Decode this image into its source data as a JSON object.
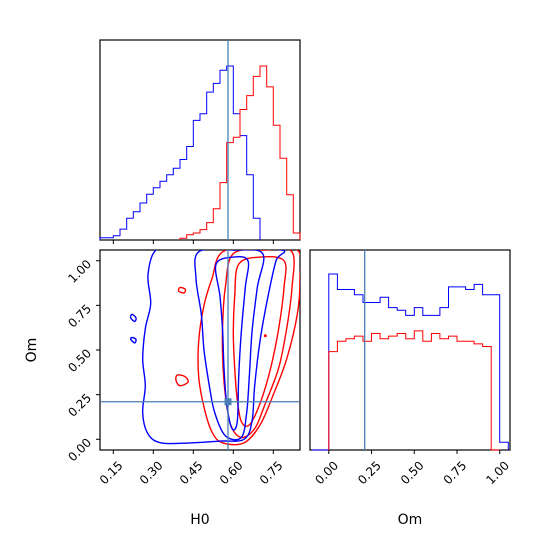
{
  "chart_data": {
    "type": "corner",
    "parameters": [
      "H0",
      "Om"
    ],
    "truth": {
      "H0": 0.58,
      "Om": 0.21
    },
    "truth_color": "#4a7fb5",
    "xlabel_H0": "H0",
    "xlabel_Om": "Om",
    "ylabel_Om": "Om",
    "H0_ticks": [
      "0.15",
      "0.30",
      "0.45",
      "0.60",
      "0.75"
    ],
    "Om_ticks": [
      "0.00",
      "0.25",
      "0.50",
      "0.75",
      "1.00"
    ],
    "H0_range": [
      0.1,
      0.85
    ],
    "Om_range": [
      -0.06,
      1.06
    ],
    "series": [
      {
        "color": "#0000ff",
        "H0_hist": {
          "edges": [
            0.1,
            0.125,
            0.15,
            0.175,
            0.2,
            0.225,
            0.25,
            0.275,
            0.3,
            0.325,
            0.35,
            0.375,
            0.4,
            0.425,
            0.45,
            0.475,
            0.5,
            0.525,
            0.55,
            0.575,
            0.6,
            0.625,
            0.65,
            0.675,
            0.7
          ],
          "counts": [
            1,
            1,
            2,
            5,
            10,
            13,
            17,
            21,
            24,
            27,
            30,
            33,
            37,
            43,
            55,
            58,
            68,
            72,
            78,
            80,
            58,
            48,
            30,
            10
          ]
        },
        "Om_hist": {
          "edges": [
            -0.1,
            -0.05,
            0.0,
            0.05,
            0.1,
            0.15,
            0.2,
            0.25,
            0.3,
            0.35,
            0.4,
            0.45,
            0.5,
            0.55,
            0.6,
            0.65,
            0.7,
            0.75,
            0.8,
            0.85,
            0.9,
            0.95,
            1.0,
            1.05
          ],
          "counts": [
            0,
            0,
            68,
            62,
            62,
            60,
            57,
            57,
            59,
            55,
            54,
            52,
            55,
            52,
            52,
            55,
            63,
            63,
            62,
            64,
            60,
            60,
            3
          ]
        }
      },
      {
        "color": "#ff0000",
        "H0_hist": {
          "edges": [
            0.4,
            0.425,
            0.45,
            0.475,
            0.5,
            0.525,
            0.55,
            0.575,
            0.6,
            0.625,
            0.65,
            0.675,
            0.7,
            0.725,
            0.75,
            0.775,
            0.8,
            0.825,
            0.85
          ],
          "counts": [
            1,
            3,
            4,
            6,
            10,
            18,
            33,
            56,
            59,
            75,
            83,
            94,
            100,
            88,
            66,
            47,
            26,
            4
          ]
        },
        "Om_hist": {
          "edges": [
            0.0,
            0.05,
            0.1,
            0.15,
            0.2,
            0.25,
            0.3,
            0.35,
            0.4,
            0.45,
            0.5,
            0.55,
            0.6,
            0.65,
            0.7,
            0.75,
            0.8,
            0.85,
            0.9,
            0.95,
            1.0
          ],
          "counts": [
            38,
            42,
            43,
            44,
            42,
            45,
            43,
            44,
            45,
            43,
            46,
            42,
            45,
            43,
            44,
            42,
            42,
            41,
            40,
            0
          ]
        }
      }
    ]
  }
}
